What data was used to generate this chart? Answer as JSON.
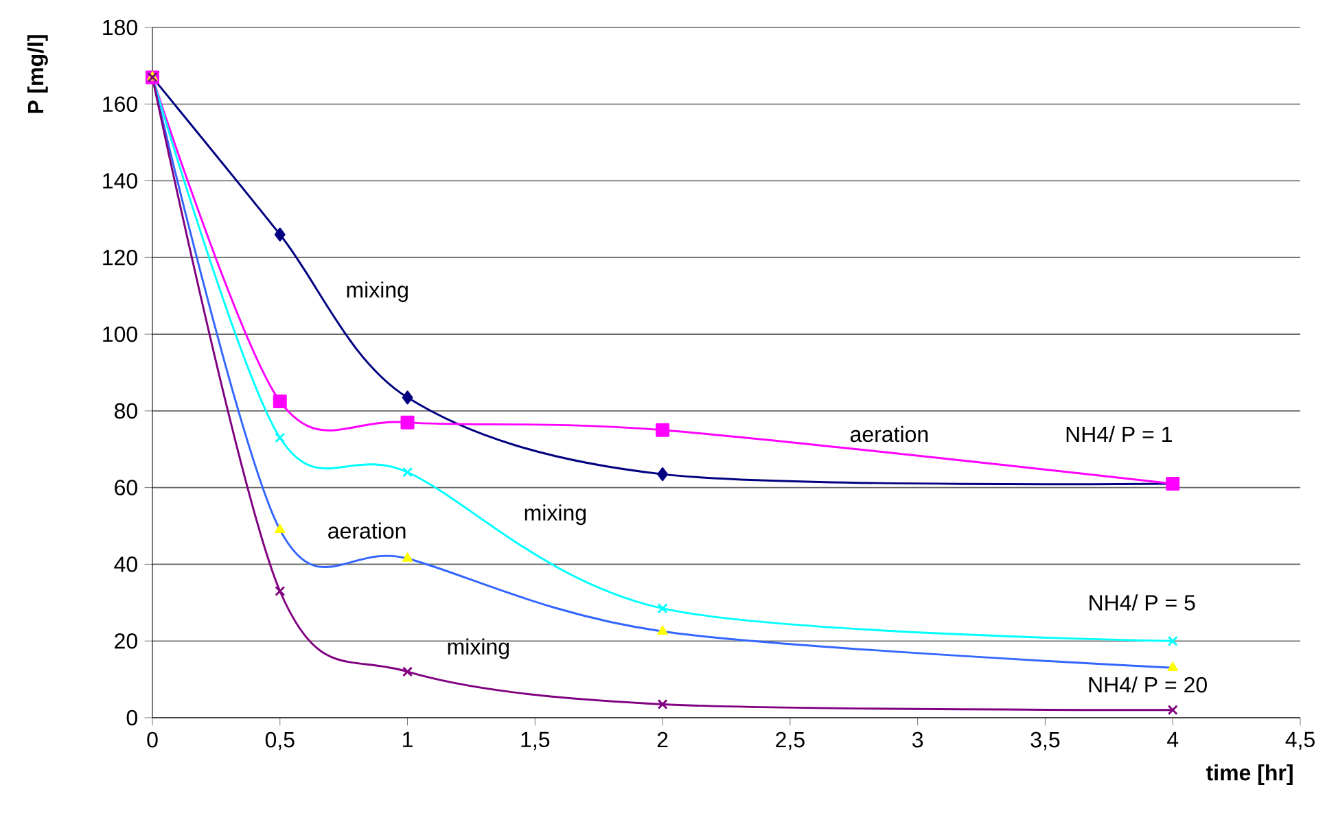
{
  "chart_data": {
    "type": "line",
    "xlabel": "time [hr]",
    "ylabel": "P [mg/l]",
    "x": [
      0,
      0.5,
      1,
      2,
      4
    ],
    "series": [
      {
        "color": "#000080",
        "marker": "diamond",
        "values": [
          167,
          126,
          83.5,
          63.5,
          61
        ]
      },
      {
        "color": "#ff00ff",
        "marker": "square",
        "values": [
          167,
          82.5,
          77,
          75,
          61
        ]
      },
      {
        "color": "#00ffff",
        "marker": "cross",
        "values": [
          167,
          73,
          64,
          28.5,
          20
        ]
      },
      {
        "color": "#3366ff",
        "marker": "none",
        "values": [
          167,
          49,
          41.5,
          22.5,
          13
        ]
      },
      {
        "type": "scatter",
        "color": "#ffff00",
        "marker": "triangle",
        "values": [
          167,
          49,
          41.5,
          22.5,
          13
        ]
      },
      {
        "color": "#800080",
        "marker": "cross",
        "values": [
          167,
          33,
          12,
          3.5,
          2
        ]
      }
    ],
    "xlim": [
      0,
      4.5
    ],
    "xticks": [
      0,
      {
        "value": 0.5,
        "label": "0,5"
      },
      1,
      {
        "value": 1.5,
        "label": "1,5"
      },
      2,
      {
        "value": 2.5,
        "label": "2,5"
      },
      3,
      {
        "value": 3.5,
        "label": "3,5"
      },
      4,
      {
        "value": 4.5,
        "label": "4,5"
      }
    ],
    "ylim": [
      0,
      180
    ],
    "yticks": [
      0,
      20,
      40,
      60,
      80,
      100,
      120,
      140,
      160,
      180
    ],
    "grid": "y",
    "line_style": "solid",
    "annotations": [
      "mixing",
      "aeration",
      "NH4/ P = 1",
      "mixing",
      "aeration",
      "NH4/ P = 5",
      "mixing",
      "NH4/ P = 20"
    ]
  }
}
